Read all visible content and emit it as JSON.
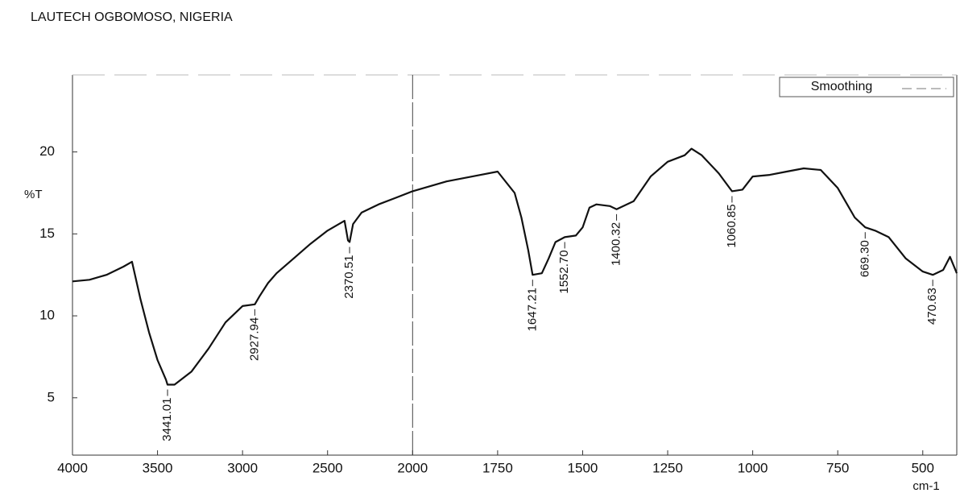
{
  "chart_data": {
    "type": "line",
    "title": "LAUTECH OGBOMOSO, NIGERIA",
    "y_label": "%T",
    "x_label": "cm-1",
    "legend": "Smoothing",
    "xlim": [
      4000,
      400
    ],
    "xbreak": 2000,
    "ylim": [
      1.5,
      24.7
    ],
    "xticks": [
      4000,
      3500,
      3000,
      2500,
      2000,
      1750,
      1500,
      1250,
      1000,
      750,
      500
    ],
    "yticks": [
      5,
      10,
      15,
      20
    ],
    "color": "#111111",
    "x": [
      4000,
      3900,
      3800,
      3700,
      3650,
      3600,
      3550,
      3500,
      3450,
      3441.01,
      3400,
      3300,
      3200,
      3100,
      3000,
      2927.94,
      2900,
      2850,
      2800,
      2700,
      2600,
      2500,
      2400,
      2380,
      2370.51,
      2350,
      2300,
      2200,
      2100,
      2000,
      1900,
      1800,
      1750,
      1700,
      1680,
      1660,
      1647.21,
      1620,
      1600,
      1580,
      1552.7,
      1520,
      1500,
      1480,
      1460,
      1420,
      1400.32,
      1350,
      1300,
      1250,
      1200,
      1180,
      1150,
      1100,
      1060.85,
      1030,
      1000,
      950,
      900,
      850,
      800,
      750,
      700,
      669.3,
      640,
      600,
      550,
      500,
      470.63,
      440,
      420,
      400
    ],
    "values": [
      12.1,
      12.2,
      12.5,
      13.0,
      13.3,
      11.0,
      9.0,
      7.3,
      6.1,
      5.8,
      5.8,
      6.6,
      8.0,
      9.6,
      10.6,
      10.7,
      11.2,
      12.0,
      12.6,
      13.5,
      14.4,
      15.2,
      15.8,
      14.6,
      14.5,
      15.6,
      16.3,
      16.8,
      17.2,
      17.6,
      18.2,
      18.6,
      18.8,
      17.5,
      16.0,
      14.0,
      12.5,
      12.6,
      13.5,
      14.5,
      14.8,
      14.9,
      15.4,
      16.6,
      16.8,
      16.7,
      16.5,
      17.0,
      18.5,
      19.4,
      19.8,
      20.2,
      19.8,
      18.7,
      17.6,
      17.7,
      18.5,
      18.6,
      18.8,
      19.0,
      18.9,
      17.8,
      16.0,
      15.4,
      15.2,
      14.8,
      13.5,
      12.7,
      12.5,
      12.8,
      13.6,
      12.6
    ],
    "peaks": [
      {
        "value": 3441.01,
        "label": "3441.01"
      },
      {
        "value": 2927.94,
        "label": "2927.94"
      },
      {
        "value": 2370.51,
        "label": "2370.51"
      },
      {
        "value": 1647.21,
        "label": "1647.21"
      },
      {
        "value": 1552.7,
        "label": "1552.70"
      },
      {
        "value": 1400.32,
        "label": "1400.32"
      },
      {
        "value": 1060.85,
        "label": "1060.85"
      },
      {
        "value": 669.3,
        "label": "669.30"
      },
      {
        "value": 470.63,
        "label": "470.63"
      }
    ]
  }
}
